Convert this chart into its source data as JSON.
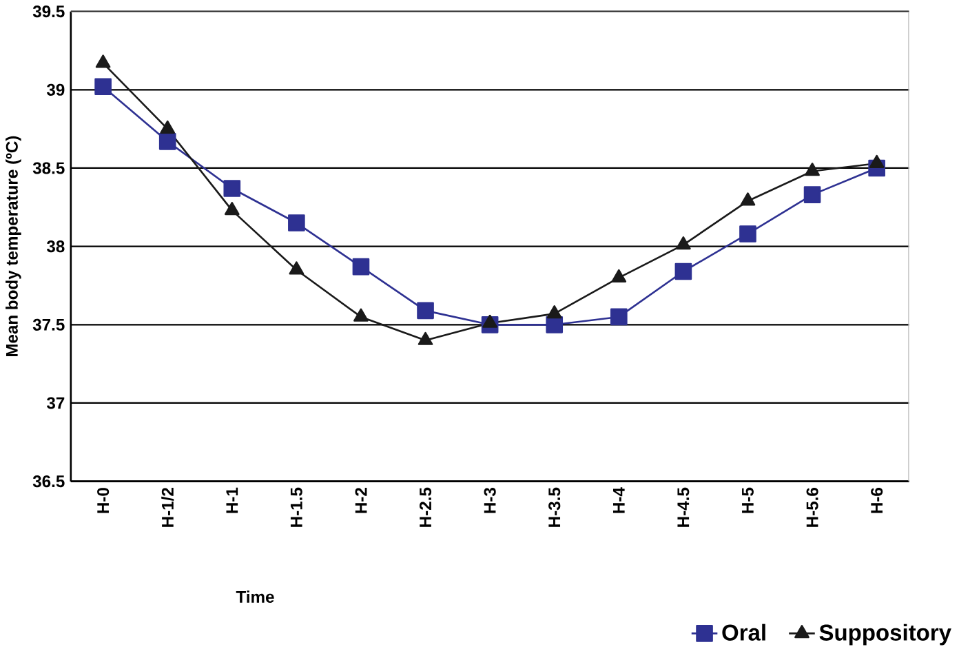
{
  "chart_data": {
    "type": "line",
    "xlabel": "Time",
    "ylabel": "Mean body temperature (ºC)",
    "categories": [
      "H-0",
      "H-1/2",
      "H-1",
      "H-1.5",
      "H-2",
      "H-2.5",
      "H-3",
      "H-3.5",
      "H-4",
      "H-4.5",
      "H-5",
      "H-5.6",
      "H-6"
    ],
    "series": [
      {
        "name": "Oral",
        "color": "#2e3192",
        "marker": "square",
        "values": [
          39.02,
          38.67,
          38.37,
          38.15,
          37.87,
          37.59,
          37.5,
          37.5,
          37.55,
          37.84,
          38.08,
          38.33,
          38.5
        ]
      },
      {
        "name": "Suppository",
        "color": "#1a1a1a",
        "marker": "triangle",
        "values": [
          39.17,
          38.75,
          38.23,
          37.85,
          37.55,
          37.4,
          37.51,
          37.57,
          37.8,
          38.01,
          38.29,
          38.48,
          38.53
        ]
      }
    ],
    "ylim": [
      36.5,
      39.5
    ],
    "yticks": [
      36.5,
      37,
      37.5,
      38,
      38.5,
      39,
      39.5
    ],
    "grid": "y",
    "legend": "bottom right",
    "line_style": "solid"
  }
}
